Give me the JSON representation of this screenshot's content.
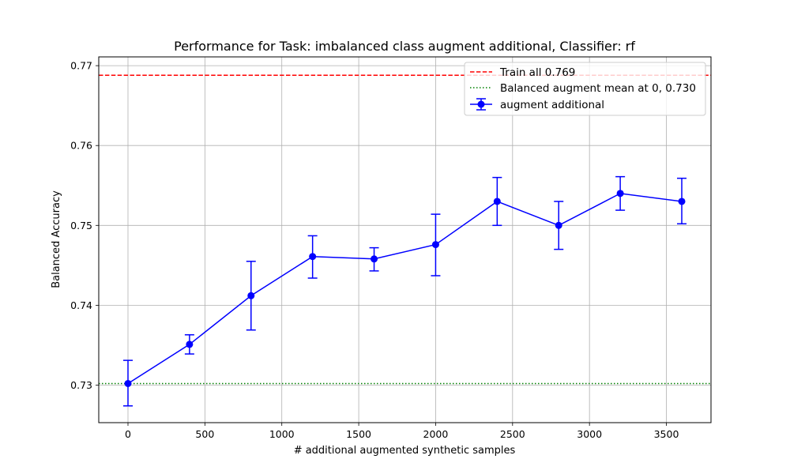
{
  "chart_data": {
    "type": "line",
    "title": "Performance for Task: imbalanced class augment additional, Classifier: rf",
    "xlabel": "# additional augmented synthetic samples",
    "ylabel": "Balanced Accuracy",
    "xlim": [
      -190,
      3790
    ],
    "ylim": [
      0.7253,
      0.7711
    ],
    "xticks": [
      0,
      500,
      1000,
      1500,
      2000,
      2500,
      3000,
      3500
    ],
    "xtick_labels": [
      "0",
      "500",
      "1000",
      "1500",
      "2000",
      "2500",
      "3000",
      "3500"
    ],
    "yticks": [
      0.73,
      0.74,
      0.75,
      0.76,
      0.77
    ],
    "ytick_labels": [
      "0.73",
      "0.74",
      "0.75",
      "0.76",
      "0.77"
    ],
    "grid": true,
    "legend_position": "top-right",
    "series": [
      {
        "name": "augment additional",
        "color": "#0000ff",
        "x": [
          0,
          400,
          800,
          1200,
          1600,
          2000,
          2400,
          2800,
          3200,
          3600
        ],
        "y": [
          0.7302,
          0.7351,
          0.7412,
          0.7461,
          0.7458,
          0.7476,
          0.753,
          0.75,
          0.754,
          0.753
        ],
        "yerr_low": [
          0.7274,
          0.7339,
          0.7369,
          0.7434,
          0.7443,
          0.7437,
          0.75,
          0.747,
          0.7519,
          0.7502
        ],
        "yerr_high": [
          0.7331,
          0.7363,
          0.7455,
          0.7487,
          0.7472,
          0.7514,
          0.756,
          0.753,
          0.7561,
          0.7559
        ]
      }
    ],
    "hlines": [
      {
        "label": "Train all  0.769",
        "y": 0.7688,
        "color": "#ff0000",
        "style": "dashed"
      },
      {
        "label": "Balanced augment mean at 0, 0.730",
        "y": 0.7302,
        "color": "#008000",
        "style": "dotted"
      }
    ]
  }
}
